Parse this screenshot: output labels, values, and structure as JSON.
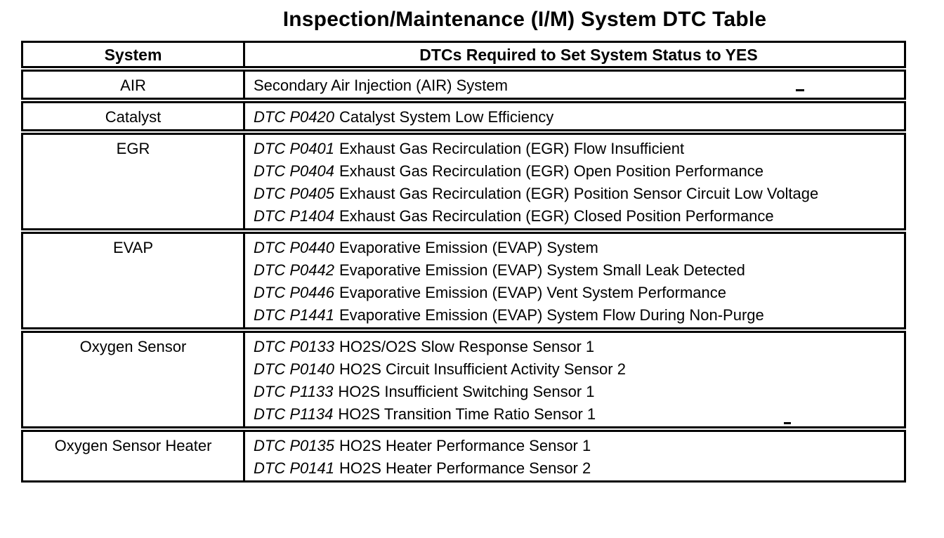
{
  "title": "Inspection/Maintenance (I/M) System DTC Table",
  "table": {
    "headers": {
      "system": "System",
      "dtcs": "DTCs Required to Set System Status to YES"
    },
    "rows": [
      {
        "system": "AIR",
        "entries": [
          {
            "code": "",
            "text": "Secondary Air Injection (AIR) System"
          }
        ]
      },
      {
        "system": "Catalyst",
        "entries": [
          {
            "code": "DTC P0420",
            "text": "Catalyst System Low Efficiency"
          }
        ]
      },
      {
        "system": "EGR",
        "entries": [
          {
            "code": "DTC P0401",
            "text": "Exhaust Gas Recirculation (EGR) Flow Insufficient"
          },
          {
            "code": "DTC P0404",
            "text": "Exhaust Gas Recirculation (EGR) Open Position Performance"
          },
          {
            "code": "DTC P0405",
            "text": "Exhaust Gas Recirculation (EGR) Position Sensor Circuit Low Voltage"
          },
          {
            "code": "DTC P1404",
            "text": "Exhaust Gas Recirculation (EGR) Closed Position Performance"
          }
        ]
      },
      {
        "system": "EVAP",
        "entries": [
          {
            "code": "DTC P0440",
            "text": "Evaporative Emission (EVAP) System"
          },
          {
            "code": "DTC P0442",
            "text": "Evaporative Emission (EVAP) System Small Leak Detected"
          },
          {
            "code": "DTC P0446",
            "text": "Evaporative Emission (EVAP) Vent System Performance"
          },
          {
            "code": "DTC P1441",
            "text": "Evaporative Emission (EVAP) System Flow During Non-Purge"
          }
        ]
      },
      {
        "system": "Oxygen Sensor",
        "entries": [
          {
            "code": "DTC P0133",
            "text": "HO2S/O2S Slow Response Sensor 1"
          },
          {
            "code": "DTC P0140",
            "text": "HO2S Circuit Insufficient Activity Sensor 2"
          },
          {
            "code": "DTC P1133",
            "text": "HO2S Insufficient Switching Sensor 1"
          },
          {
            "code": "DTC P1134",
            "text": "HO2S Transition Time Ratio Sensor 1"
          }
        ]
      },
      {
        "system": "Oxygen Sensor Heater",
        "entries": [
          {
            "code": "DTC P0135",
            "text": "HO2S Heater Performance Sensor 1"
          },
          {
            "code": "DTC P0141",
            "text": "HO2S Heater Performance Sensor 2"
          }
        ]
      }
    ]
  },
  "colors": {
    "ink": "#000000",
    "paper": "#ffffff"
  }
}
